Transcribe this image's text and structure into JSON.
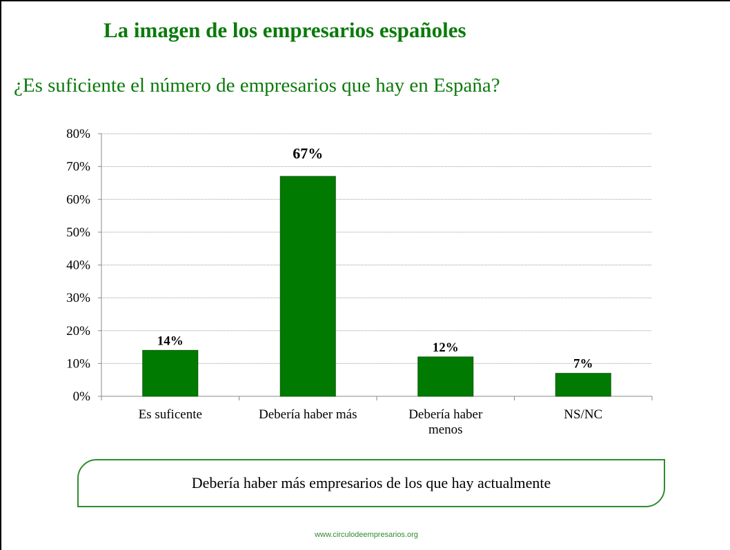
{
  "chart_data": {
    "type": "bar",
    "title": "La imagen de los empresarios españoles",
    "subtitle": "¿Es suficiente el número de empresarios que hay en España?",
    "categories": [
      "Es suficente",
      "Debería haber más",
      "Debería haber menos",
      "NS/NC"
    ],
    "values": [
      14,
      67,
      12,
      7
    ],
    "value_labels": [
      "14%",
      "67%",
      "12%",
      "7%"
    ],
    "color": "#007a00",
    "ylim": [
      0,
      80
    ],
    "yticks": [
      {
        "value": 0,
        "label": "0%"
      },
      {
        "value": 10,
        "label": "10%"
      },
      {
        "value": 20,
        "label": "20%"
      },
      {
        "value": 30,
        "label": "30%"
      },
      {
        "value": 40,
        "label": "40%"
      },
      {
        "value": 50,
        "label": "50%"
      },
      {
        "value": 60,
        "label": "60%"
      },
      {
        "value": 70,
        "label": "70%"
      },
      {
        "value": 80,
        "label": "80%"
      }
    ],
    "grid": true,
    "annotation": "Debería haber más empresarios de los que hay actualmente",
    "footer": "www.circulodeempresarios.org"
  }
}
